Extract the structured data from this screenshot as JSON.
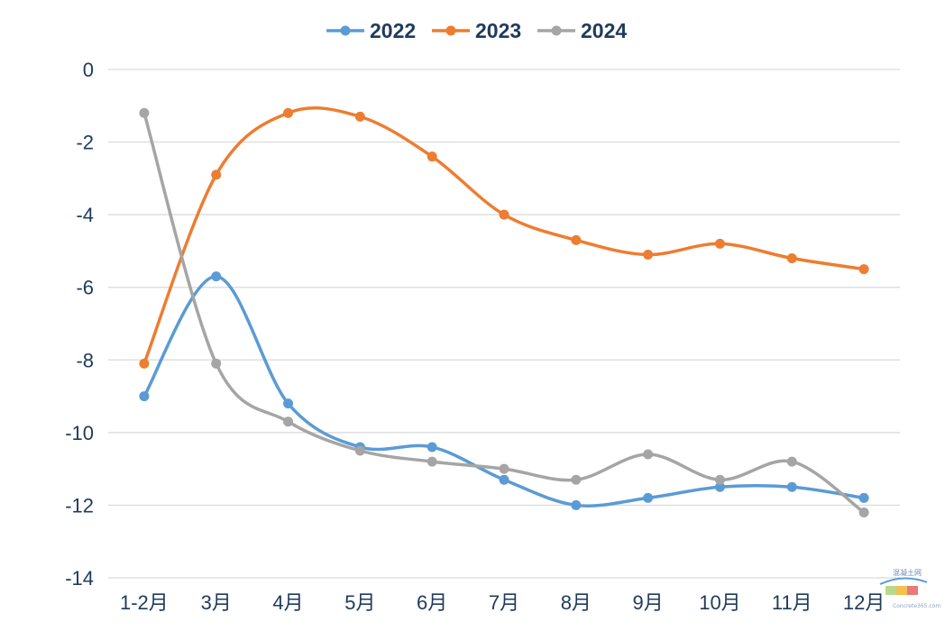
{
  "chart_data": {
    "type": "line",
    "categories": [
      "1-2月",
      "3月",
      "4月",
      "5月",
      "6月",
      "7月",
      "8月",
      "9月",
      "10月",
      "11月",
      "12月"
    ],
    "series": [
      {
        "name": "2022",
        "color": "#5b9bd5",
        "values": [
          -9.0,
          -5.7,
          -9.2,
          -10.4,
          -10.4,
          -11.3,
          -12.0,
          -11.8,
          -11.5,
          -11.5,
          -11.8
        ]
      },
      {
        "name": "2023",
        "color": "#ed7d31",
        "values": [
          -8.1,
          -2.9,
          -1.2,
          -1.3,
          -2.4,
          -4.0,
          -4.7,
          -5.1,
          -4.8,
          -5.2,
          -5.5
        ]
      },
      {
        "name": "2024",
        "color": "#a5a5a5",
        "values": [
          -1.2,
          -8.1,
          -9.7,
          -10.5,
          -10.8,
          -11.0,
          -11.3,
          -10.6,
          -11.3,
          -10.8,
          -12.2
        ]
      }
    ],
    "ylim": [
      -14,
      0
    ],
    "yticks": [
      0,
      -2,
      -4,
      -6,
      -8,
      -10,
      -12,
      -14
    ],
    "ytick_labels": [
      "0",
      "-2",
      "-4",
      "-6",
      "-8",
      "-10",
      "-12",
      "-14"
    ],
    "grid": true,
    "smooth": true,
    "markers": true,
    "legend_position": "top-center"
  },
  "watermark": {
    "text": "混凝土网",
    "subtext": "Concrete365.com"
  }
}
